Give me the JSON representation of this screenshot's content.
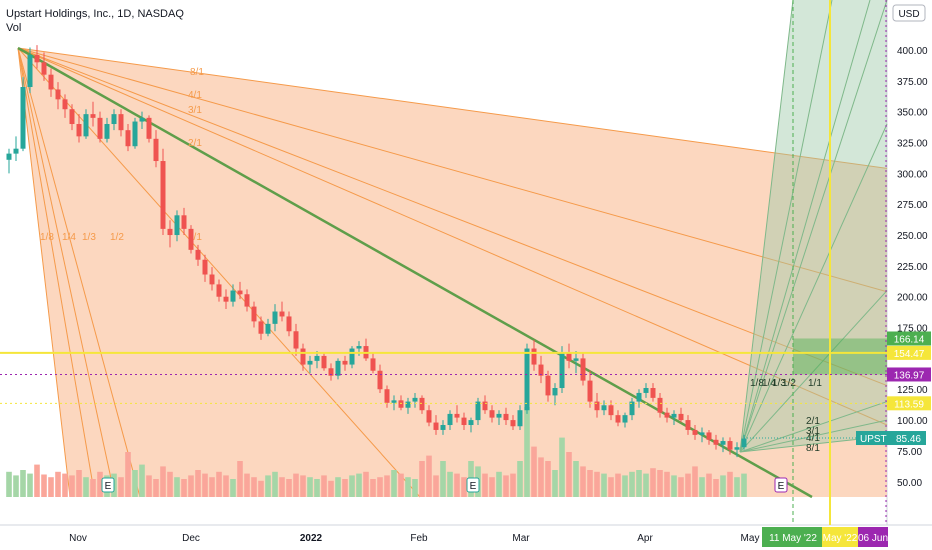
{
  "header": {
    "title": "Upstart Holdings, Inc., 1D, NASDAQ",
    "volume_label": "Vol",
    "currency": "USD"
  },
  "colors": {
    "up": "#26a69a",
    "down": "#ef5350",
    "up_vol": "#a5d6a7",
    "down_vol": "#faa69a",
    "fan_fill": "#fbd0b4",
    "fan_line": "#f59a4a",
    "green_fan": "#7fb88a",
    "yellow": "#f5e63a",
    "purple": "#9c27b0"
  },
  "chart_data": {
    "type": "candlestick",
    "title": "Upstart Holdings, Inc., 1D, NASDAQ",
    "y_axis": {
      "unit": "USD",
      "ticks": [
        "400.00",
        "375.00",
        "350.00",
        "325.00",
        "300.00",
        "275.00",
        "250.00",
        "225.00",
        "200.00",
        "175.00",
        "125.00",
        "100.00",
        "75.00",
        "50.00"
      ],
      "values": [
        400,
        375,
        350,
        325,
        300,
        275,
        250,
        225,
        200,
        175,
        125,
        100,
        75,
        50
      ]
    },
    "x_axis": {
      "ticks": [
        "Nov",
        "Dec",
        "2022",
        "Feb",
        "Mar",
        "Apr",
        "May"
      ],
      "tick_dates": [
        "2021-11-01",
        "2021-12-01",
        "2022-01-01",
        "2022-02-01",
        "2022-03-01",
        "2022-04-01",
        "2022-05-01"
      ]
    },
    "price_levels": [
      {
        "label": "166.14",
        "value": 166.14,
        "color": "#4caf50"
      },
      {
        "label": "154.47",
        "value": 154.47,
        "color": "#f5e63a"
      },
      {
        "label": "136.97",
        "value": 136.97,
        "color": "#9c27b0"
      },
      {
        "label": "113.59",
        "value": 113.59,
        "color": "#f5e63a"
      },
      {
        "label": "UPST",
        "value": 85.46,
        "color": "#26a69a",
        "price": "85.46"
      }
    ],
    "date_tags": [
      {
        "label": "11 May '22",
        "date": "2022-05-11",
        "color": "#4caf50"
      },
      {
        "label": "May '22",
        "date": "2022-05-20",
        "color": "#f5e63a"
      },
      {
        "label": "06 Jun",
        "date": "2022-06-06",
        "color": "#9c27b0"
      }
    ],
    "fan_labels": [
      "8/1",
      "4/1",
      "3/1",
      "2/1",
      "1/1",
      "1/8",
      "1/4",
      "1/3",
      "1/2"
    ],
    "fan_labels_lower": [
      "1/8",
      "1/4",
      "1/3",
      "1/2",
      "1/1",
      "2/1",
      "3/1",
      "4/1",
      "8/1"
    ],
    "event_markers": [
      {
        "label": "E",
        "date": "2021-11-10"
      },
      {
        "label": "E",
        "date": "2022-02-15"
      },
      {
        "label": "E",
        "date": "2022-05-09"
      }
    ],
    "candles": [
      [
        311,
        320,
        300,
        316
      ],
      [
        316,
        330,
        310,
        320
      ],
      [
        320,
        378,
        318,
        370
      ],
      [
        370,
        402,
        365,
        396
      ],
      [
        396,
        404,
        385,
        390
      ],
      [
        390,
        398,
        375,
        380
      ],
      [
        380,
        385,
        362,
        368
      ],
      [
        368,
        374,
        352,
        360
      ],
      [
        360,
        364,
        345,
        352
      ],
      [
        352,
        356,
        335,
        340
      ],
      [
        340,
        348,
        325,
        330
      ],
      [
        330,
        352,
        328,
        348
      ],
      [
        348,
        358,
        338,
        345
      ],
      [
        345,
        350,
        325,
        328
      ],
      [
        328,
        345,
        325,
        340
      ],
      [
        340,
        352,
        335,
        348
      ],
      [
        348,
        352,
        330,
        335
      ],
      [
        335,
        340,
        318,
        322
      ],
      [
        322,
        345,
        320,
        342
      ],
      [
        342,
        350,
        336,
        345
      ],
      [
        345,
        347,
        325,
        328
      ],
      [
        328,
        335,
        305,
        310
      ],
      [
        310,
        320,
        250,
        255
      ],
      [
        255,
        262,
        240,
        250
      ],
      [
        250,
        270,
        245,
        266
      ],
      [
        266,
        272,
        250,
        255
      ],
      [
        255,
        258,
        235,
        238
      ],
      [
        238,
        242,
        225,
        230
      ],
      [
        230,
        234,
        212,
        218
      ],
      [
        218,
        224,
        205,
        210
      ],
      [
        210,
        214,
        196,
        200
      ],
      [
        200,
        206,
        190,
        196
      ],
      [
        196,
        210,
        192,
        205
      ],
      [
        205,
        212,
        198,
        202
      ],
      [
        202,
        206,
        188,
        192
      ],
      [
        192,
        196,
        175,
        180
      ],
      [
        180,
        184,
        165,
        170
      ],
      [
        170,
        182,
        168,
        178
      ],
      [
        178,
        194,
        172,
        188
      ],
      [
        188,
        196,
        180,
        184
      ],
      [
        184,
        188,
        168,
        172
      ],
      [
        172,
        178,
        152,
        158
      ],
      [
        158,
        162,
        140,
        145
      ],
      [
        145,
        152,
        138,
        148
      ],
      [
        148,
        156,
        142,
        152
      ],
      [
        152,
        154,
        140,
        142
      ],
      [
        142,
        146,
        132,
        136
      ],
      [
        136,
        150,
        133,
        148
      ],
      [
        148,
        152,
        140,
        145
      ],
      [
        145,
        160,
        142,
        158
      ],
      [
        158,
        164,
        152,
        160
      ],
      [
        160,
        166,
        148,
        150
      ],
      [
        150,
        154,
        138,
        140
      ],
      [
        140,
        145,
        122,
        125
      ],
      [
        125,
        128,
        110,
        114
      ],
      [
        114,
        120,
        108,
        116
      ],
      [
        116,
        120,
        108,
        110
      ],
      [
        110,
        118,
        105,
        115
      ],
      [
        115,
        122,
        110,
        118
      ],
      [
        118,
        120,
        105,
        108
      ],
      [
        108,
        112,
        95,
        98
      ],
      [
        98,
        104,
        88,
        92
      ],
      [
        92,
        100,
        88,
        96
      ],
      [
        96,
        108,
        92,
        105
      ],
      [
        105,
        112,
        98,
        102
      ],
      [
        102,
        106,
        92,
        96
      ],
      [
        96,
        102,
        90,
        100
      ],
      [
        100,
        118,
        96,
        115
      ],
      [
        115,
        120,
        105,
        108
      ],
      [
        108,
        112,
        98,
        102
      ],
      [
        102,
        108,
        96,
        105
      ],
      [
        105,
        110,
        96,
        100
      ],
      [
        100,
        104,
        92,
        95
      ],
      [
        95,
        112,
        92,
        108
      ],
      [
        108,
        162,
        105,
        158
      ],
      [
        158,
        165,
        140,
        145
      ],
      [
        145,
        152,
        130,
        136
      ],
      [
        136,
        140,
        115,
        120
      ],
      [
        120,
        130,
        112,
        126
      ],
      [
        126,
        160,
        122,
        155
      ],
      [
        155,
        162,
        142,
        148
      ],
      [
        148,
        156,
        138,
        150
      ],
      [
        150,
        154,
        128,
        132
      ],
      [
        132,
        140,
        110,
        115
      ],
      [
        115,
        122,
        102,
        108
      ],
      [
        108,
        116,
        104,
        112
      ],
      [
        112,
        116,
        100,
        104
      ],
      [
        104,
        108,
        95,
        98
      ],
      [
        98,
        106,
        94,
        104
      ],
      [
        104,
        118,
        100,
        115
      ],
      [
        115,
        125,
        110,
        122
      ],
      [
        122,
        130,
        118,
        126
      ],
      [
        126,
        130,
        115,
        118
      ],
      [
        118,
        122,
        102,
        106
      ],
      [
        106,
        110,
        98,
        102
      ],
      [
        102,
        108,
        96,
        105
      ],
      [
        105,
        110,
        98,
        100
      ],
      [
        100,
        104,
        88,
        92
      ],
      [
        92,
        96,
        84,
        88
      ],
      [
        88,
        94,
        82,
        90
      ],
      [
        90,
        92,
        80,
        84
      ],
      [
        84,
        88,
        76,
        80
      ],
      [
        80,
        86,
        74,
        83
      ],
      [
        83,
        86,
        72,
        76
      ],
      [
        76,
        82,
        70,
        78
      ],
      [
        78,
        88,
        76,
        85
      ]
    ],
    "volumes": [
      28,
      24,
      30,
      26,
      36,
      25,
      22,
      28,
      26,
      24,
      30,
      22,
      20,
      28,
      24,
      26,
      22,
      50,
      30,
      36,
      24,
      20,
      34,
      28,
      22,
      20,
      24,
      30,
      26,
      22,
      28,
      24,
      20,
      40,
      26,
      22,
      18,
      24,
      28,
      22,
      20,
      26,
      24,
      22,
      20,
      24,
      18,
      22,
      20,
      24,
      26,
      28,
      20,
      22,
      24,
      30,
      26,
      22,
      20,
      40,
      46,
      24,
      40,
      28,
      26,
      22,
      40,
      34,
      26,
      22,
      28,
      24,
      26,
      40,
      100,
      56,
      44,
      40,
      30,
      66,
      50,
      40,
      34,
      30,
      28,
      26,
      22,
      26,
      24,
      28,
      30,
      26,
      32,
      30,
      28,
      24,
      22,
      26,
      34,
      22,
      26,
      20,
      24,
      28,
      22,
      26
    ]
  }
}
